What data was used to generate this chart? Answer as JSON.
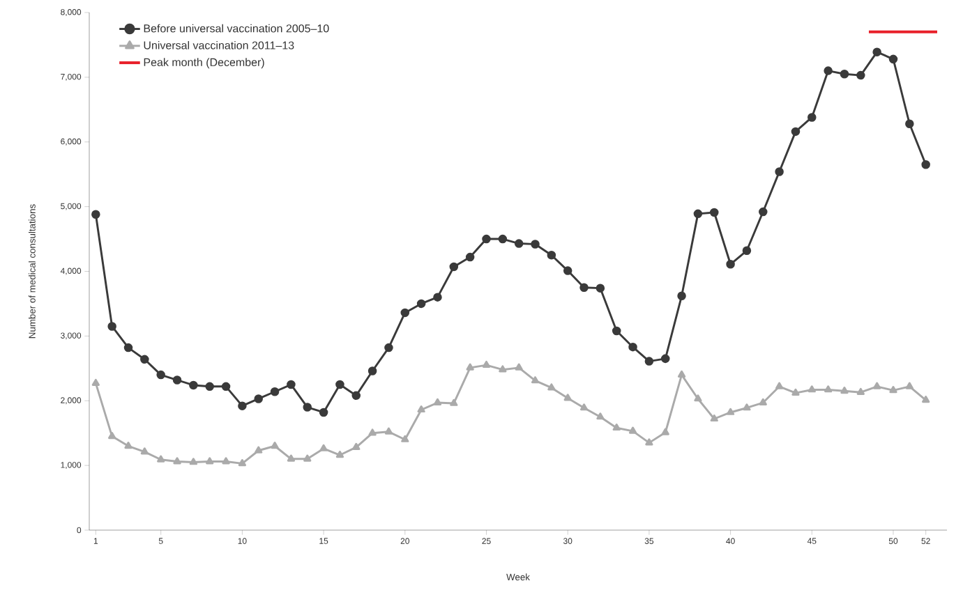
{
  "chart_data": {
    "type": "line",
    "xlabel": "Week",
    "ylabel": "Number of medical consultations",
    "x": [
      1,
      2,
      3,
      4,
      5,
      6,
      7,
      8,
      9,
      10,
      11,
      12,
      13,
      14,
      15,
      16,
      17,
      18,
      19,
      20,
      21,
      22,
      23,
      24,
      25,
      26,
      27,
      28,
      29,
      30,
      31,
      32,
      33,
      34,
      35,
      36,
      37,
      38,
      39,
      40,
      41,
      42,
      43,
      44,
      45,
      46,
      47,
      48,
      49,
      50,
      51,
      52
    ],
    "xlim": [
      0.6,
      53.3
    ],
    "xticks": [
      1,
      5,
      10,
      15,
      20,
      25,
      30,
      35,
      40,
      45,
      50,
      52
    ],
    "ylim": [
      0,
      8000
    ],
    "yticks": [
      0,
      {
        "value": 1000,
        "label": "1,000"
      },
      {
        "value": 2000,
        "label": "2,000"
      },
      {
        "value": 3000,
        "label": "3,000"
      },
      {
        "value": 4000,
        "label": "4,000"
      },
      {
        "value": 5000,
        "label": "5,000"
      },
      {
        "value": 6000,
        "label": "6,000"
      },
      {
        "value": 7000,
        "label": "7,000"
      },
      {
        "value": 8000,
        "label": "8,000"
      }
    ],
    "legend": "top left",
    "grid": false,
    "line_style": "solid",
    "series": [
      {
        "name": "Before universal vaccination 2005–10",
        "color": "#3a3a3a",
        "marker": "circle",
        "values": [
          4880,
          3150,
          2820,
          2640,
          2400,
          2320,
          2240,
          2220,
          2220,
          1920,
          2030,
          2140,
          2250,
          1900,
          1820,
          2250,
          2080,
          2460,
          2820,
          3360,
          3500,
          3600,
          4070,
          4220,
          4500,
          4500,
          4430,
          4420,
          4250,
          4010,
          3750,
          3740,
          3080,
          2830,
          2610,
          2650,
          3620,
          4890,
          4910,
          4110,
          4320,
          4920,
          5540,
          6160,
          6380,
          7100,
          7050,
          7030,
          7390,
          7280,
          6280,
          5650
        ]
      },
      {
        "name": "Universal vaccination 2011–13",
        "color": "#aaaaaa",
        "marker": "triangle",
        "values": [
          2270,
          1450,
          1300,
          1210,
          1090,
          1060,
          1050,
          1060,
          1060,
          1030,
          1230,
          1300,
          1100,
          1100,
          1260,
          1160,
          1280,
          1500,
          1520,
          1400,
          1860,
          1970,
          1960,
          2510,
          2550,
          2480,
          2510,
          2310,
          2200,
          2040,
          1890,
          1750,
          1580,
          1530,
          1350,
          1510,
          2400,
          2030,
          1720,
          1820,
          1890,
          1970,
          2220,
          2120,
          2170,
          2170,
          2150,
          2130,
          2220,
          2160,
          2220,
          2010
        ]
      },
      {
        "name": "Peak month (December)",
        "color": "#e8202a",
        "marker": "none",
        "x": [
          48.5,
          52.7
        ],
        "values": [
          7700,
          7700
        ]
      }
    ]
  }
}
